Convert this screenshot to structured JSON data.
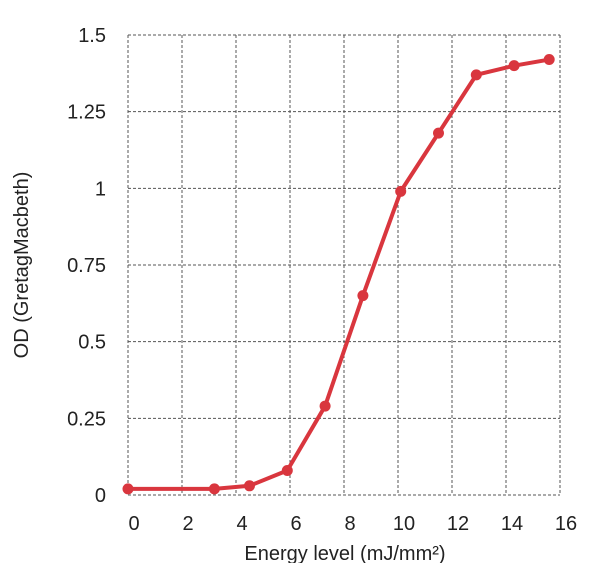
{
  "chart_data": {
    "type": "line",
    "xlabel": "Energy level (mJ/mm²)",
    "ylabel": "OD (GretagMacbeth)",
    "xlim": [
      0,
      16
    ],
    "ylim": [
      0,
      1.5
    ],
    "x_ticks": [
      0,
      2,
      4,
      6,
      8,
      10,
      12,
      14,
      16
    ],
    "x_tick_labels": [
      "0",
      "2",
      "4",
      "6",
      "8",
      "10",
      "12",
      "14",
      "16"
    ],
    "y_ticks": [
      0,
      0.25,
      0.5,
      0.75,
      1,
      1.25,
      1.5
    ],
    "y_tick_labels": [
      "0",
      "0.25",
      "0.5",
      "0.75",
      "1",
      "1.25",
      "1.5"
    ],
    "grid": true,
    "legend": "none",
    "series": [
      {
        "color": "#d9363e",
        "x": [
          0,
          3.2,
          4.5,
          5.9,
          7.3,
          8.7,
          10.1,
          11.5,
          12.9,
          14.3,
          15.6
        ],
        "y": [
          0.02,
          0.02,
          0.03,
          0.08,
          0.29,
          0.65,
          0.99,
          1.18,
          1.37,
          1.4,
          1.42
        ]
      }
    ]
  }
}
